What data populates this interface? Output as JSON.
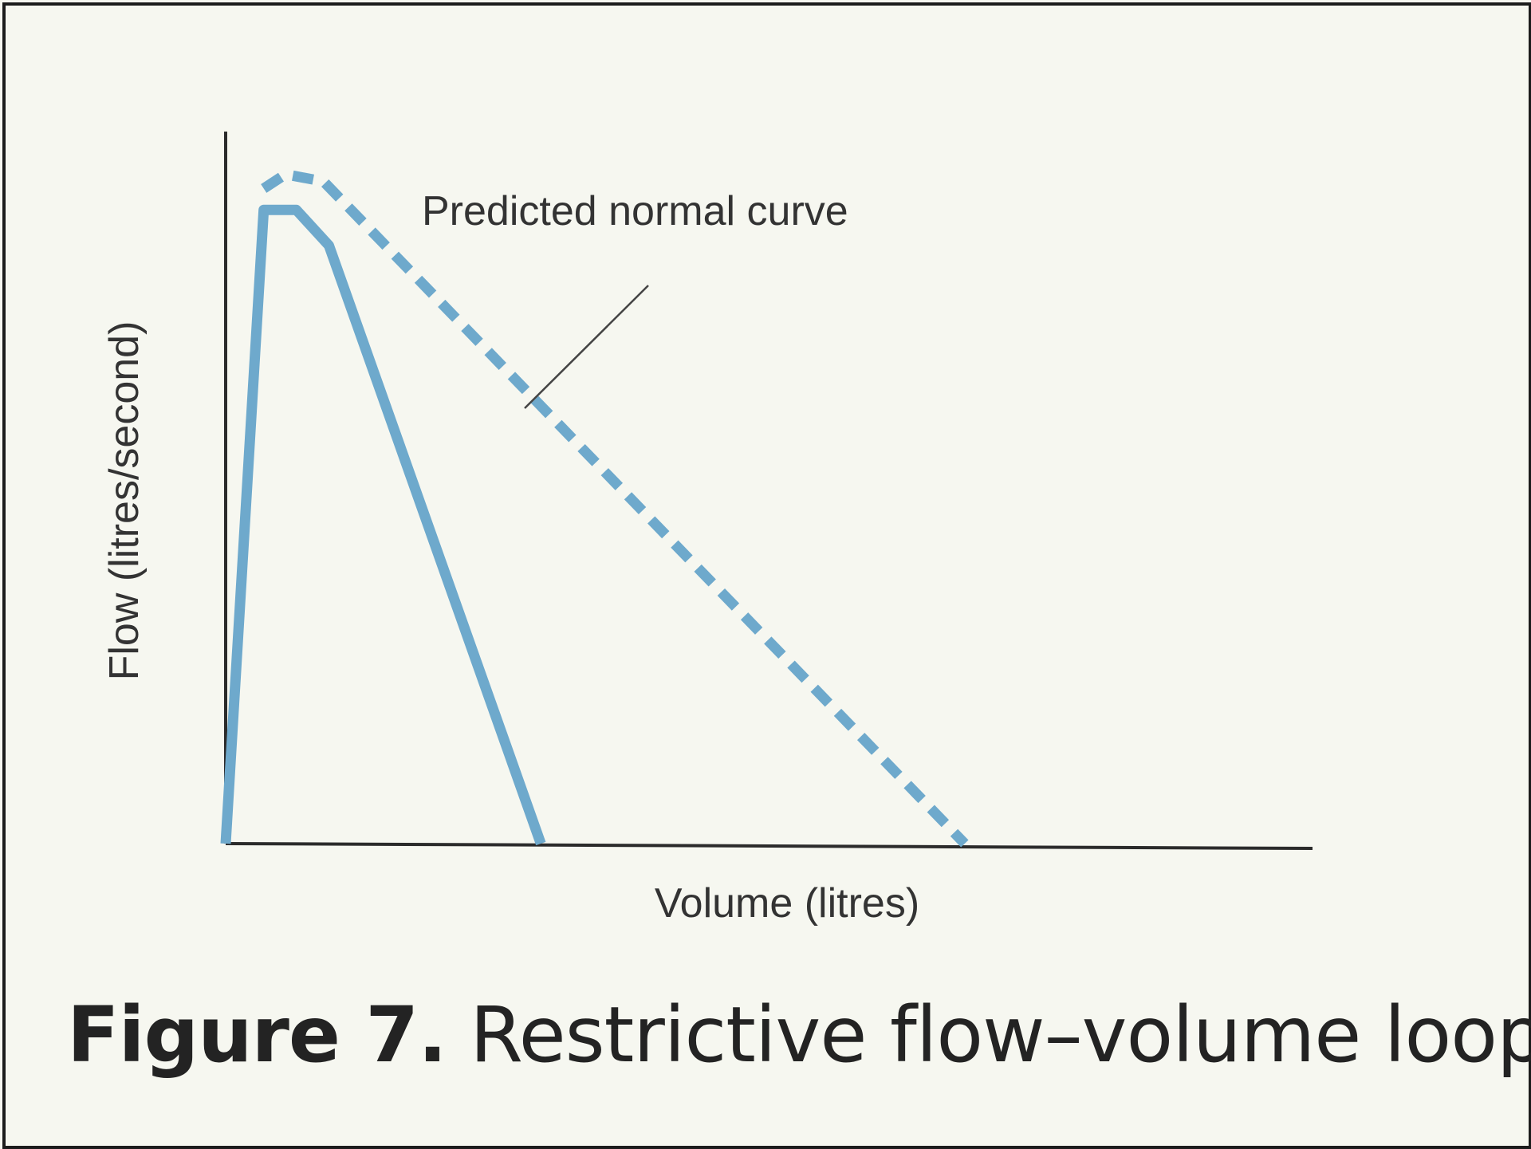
{
  "chart_data": {
    "type": "line",
    "title": "",
    "xlabel": "Volume (litres)",
    "ylabel": "Flow (litres/second)",
    "xlim": [
      0,
      10
    ],
    "ylim": [
      0,
      10
    ],
    "grid": false,
    "series": [
      {
        "name": "",
        "style": "solid",
        "color": "#6ea9cc",
        "points": [
          [
            0,
            0
          ],
          [
            0.35,
            8.9
          ],
          [
            0.65,
            8.9
          ],
          [
            0.95,
            8.4
          ],
          [
            2.9,
            0
          ]
        ]
      },
      {
        "name": "Predicted normal curve",
        "style": "dashed",
        "color": "#6ea9cc",
        "points": [
          [
            0.35,
            9.2
          ],
          [
            0.55,
            9.4
          ],
          [
            0.9,
            9.3
          ],
          [
            6.8,
            0
          ]
        ]
      }
    ],
    "annotations": [
      {
        "text": "Predicted normal curve",
        "points_to_series": 1
      }
    ]
  },
  "caption": {
    "label": "Figure 7.",
    "text": "Restrictive flow–volume loop"
  },
  "colors": {
    "background": "#f6f7f0",
    "axis": "#2b2b2b",
    "curve": "#6ea9cc",
    "text": "#232323"
  }
}
